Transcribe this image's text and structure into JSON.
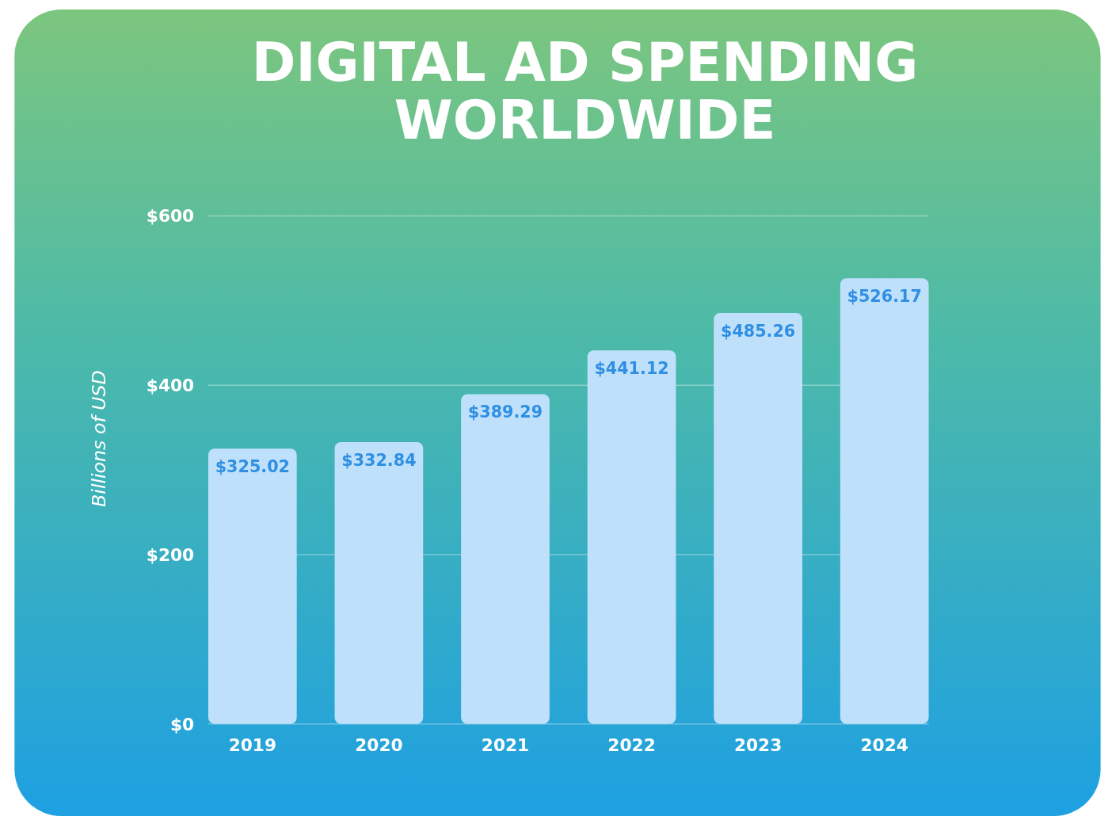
{
  "chart_data": {
    "type": "bar",
    "title": "DIGITAL AD SPENDING WORLDWIDE",
    "ylabel": "Billions of USD",
    "categories": [
      "2019",
      "2020",
      "2021",
      "2022",
      "2023",
      "2024"
    ],
    "values": [
      325.02,
      332.84,
      389.29,
      441.12,
      485.26,
      526.17
    ],
    "value_labels": [
      "$325.02",
      "$332.84",
      "$389.29",
      "$441.12",
      "$485.26",
      "$526.17"
    ],
    "color": "#bfe0fb",
    "ylim": [
      0,
      600
    ],
    "yticks": [
      {
        "value": 0,
        "label": "$0"
      },
      {
        "value": 200,
        "label": "$200"
      },
      {
        "value": 400,
        "label": "$400"
      },
      {
        "value": 600,
        "label": "$600"
      }
    ],
    "grid": "y"
  }
}
